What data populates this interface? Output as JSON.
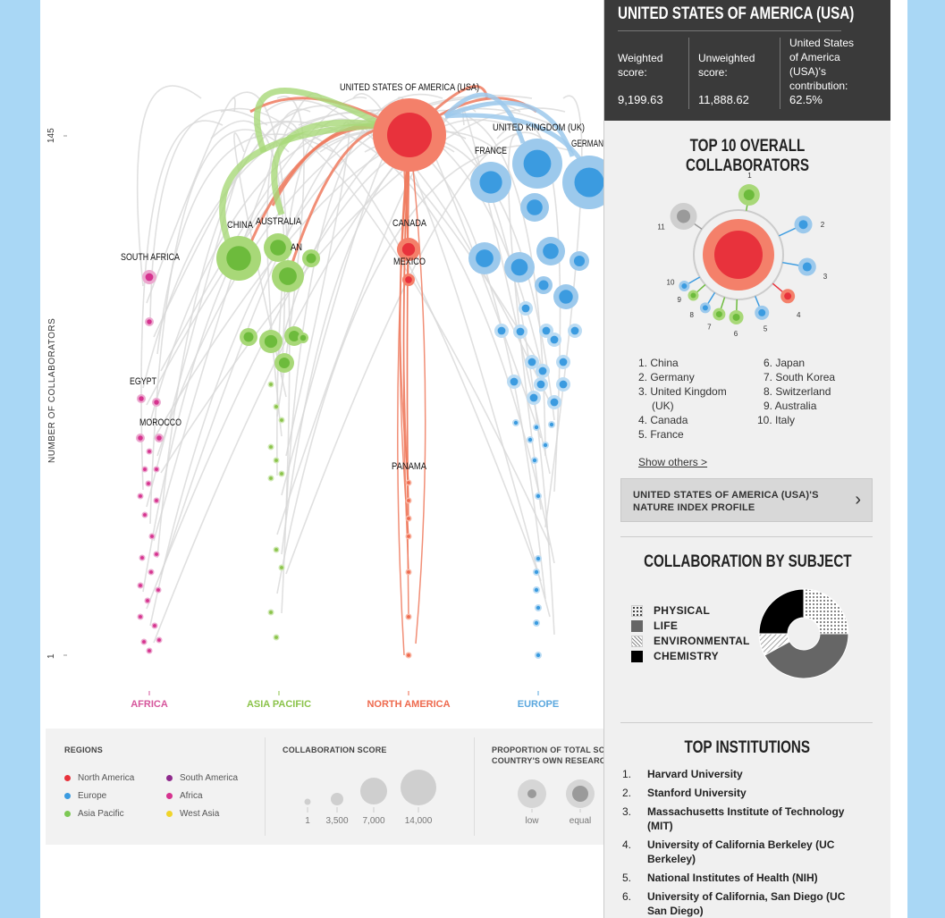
{
  "chart_data": {
    "type": "scatter",
    "ylabel": "NUMBER OF COLLABORATORS",
    "ylim": [
      1,
      145
    ],
    "y_ticks": [
      "145",
      "1"
    ],
    "focus_country": "UNITED STATES OF AMERICA (USA)",
    "regions": [
      {
        "name": "AFRICA",
        "color": "#d6569c"
      },
      {
        "name": "ASIA PACIFIC",
        "color": "#8bc34a"
      },
      {
        "name": "NORTH AMERICA",
        "color": "#ee6a4e"
      },
      {
        "name": "EUROPE",
        "color": "#5aa7de"
      }
    ],
    "labeled_countries": [
      "UNITED STATES OF AMERICA (USA)",
      "UNITED KINGDOM (UK)",
      "FRANCE",
      "GERMAN",
      "CHINA",
      "AUSTRALIA",
      "AN",
      "SOUTH AFRICA",
      "CANADA",
      "MEXICO",
      "EGYPT",
      "MOROCCO",
      "PANAMA"
    ]
  },
  "legend": {
    "regions_title": "REGIONS",
    "regions": [
      {
        "label": "North America",
        "color": "#e8323c"
      },
      {
        "label": "South America",
        "color": "#8e2a8c"
      },
      {
        "label": "Europe",
        "color": "#3b9be0"
      },
      {
        "label": "Africa",
        "color": "#d6338f"
      },
      {
        "label": "Asia Pacific",
        "color": "#7dc855"
      },
      {
        "label": "West Asia",
        "color": "#f0d42a"
      }
    ],
    "score_title": "COLLABORATION SCORE",
    "score_sizes": [
      "1",
      "3,500",
      "7,000",
      "14,000"
    ],
    "proportion_title_1": "PROPORTION OF TOTAL SCORE C",
    "proportion_title_2": "COUNTRY'S OWN RESEARCHERS",
    "proportion_labels": [
      "low",
      "equal"
    ]
  },
  "panel": {
    "country_title": "UNITED STATES OF AMERICA (USA)",
    "weighted_label_1": "Weighted",
    "weighted_label_2": "score:",
    "weighted_value": "9,199.63",
    "unweighted_label_1": "Unweighted",
    "unweighted_label_2": "score:",
    "unweighted_value": "11,888.62",
    "contrib_label_1": "United States",
    "contrib_label_2": "of America",
    "contrib_label_3": "(USA)'s",
    "contrib_label_4": "contribution:",
    "contrib_value": "62.5%",
    "top10_title": "TOP 10 OVERALL COLLABORATORS",
    "top10_left": [
      "1. China",
      "2. Germany",
      "3. United Kingdom",
      "(UK)",
      "4. Canada",
      "5. France"
    ],
    "top10_right": [
      "6. Japan",
      "7. South Korea",
      "8. Switzerland",
      "9. Australia",
      "10. Italy"
    ],
    "ring_labels": [
      "1",
      "2",
      "3",
      "4",
      "5",
      "6",
      "7",
      "8",
      "9",
      "10",
      "11"
    ],
    "show_others": "Show others >",
    "profile_line_1": "UNITED STATES OF AMERICA (USA)'S",
    "profile_line_2": "NATURE INDEX PROFILE",
    "subject_title": "COLLABORATION BY SUBJECT",
    "subjects": [
      {
        "label": "PHYSICAL",
        "share": 0.25
      },
      {
        "label": "LIFE",
        "share": 0.42
      },
      {
        "label": "ENVIRONMENTAL",
        "share": 0.08
      },
      {
        "label": "CHEMISTRY",
        "share": 0.25
      }
    ],
    "institutions_title": "TOP INSTITUTIONS",
    "institutions": [
      {
        "num": "1.",
        "name": "Harvard University"
      },
      {
        "num": "2.",
        "name": "Stanford University"
      },
      {
        "num": "3.",
        "name": "Massachusetts Institute of Technology (MIT)"
      },
      {
        "num": "4.",
        "name": "University of California Berkeley (UC Berkeley)"
      },
      {
        "num": "5.",
        "name": "National Institutes of Health (NIH)"
      },
      {
        "num": "6.",
        "name": "University of California, San Diego (UC San Diego)"
      }
    ]
  }
}
